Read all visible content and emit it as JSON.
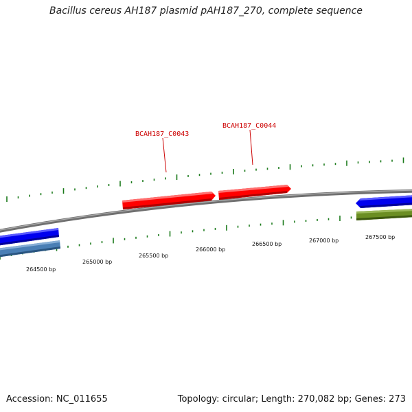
{
  "title": "Bacillus cereus AH187 plasmid pAH187_270, complete sequence",
  "footer": {
    "accession": "Accession: NC_011655",
    "summary": "Topology: circular; Length: 270,082 bp; Genes: 273"
  },
  "position_labels": [
    "264500 bp",
    "265000 bp",
    "265500 bp",
    "266000 bp",
    "266500 bp",
    "267000 bp",
    "267500 bp"
  ],
  "genes": [
    {
      "name": "BCAH187_C0043",
      "color": "#ff0000",
      "strand": "forward",
      "labeled": true
    },
    {
      "name": "BCAH187_C0044",
      "color": "#ff0000",
      "strand": "forward",
      "labeled": true
    },
    {
      "name": "",
      "color": "#0000ee",
      "strand": "forward",
      "labeled": false
    },
    {
      "name": "",
      "color": "#4a7fb5",
      "strand": "forward",
      "labeled": false
    },
    {
      "name": "",
      "color": "#0000ee",
      "strand": "reverse",
      "labeled": false
    },
    {
      "name": "",
      "color": "#6b8e23",
      "strand": "forward",
      "labeled": false
    }
  ],
  "colors": {
    "backbone": "#808080",
    "tick": "#1a7a1a",
    "gene_label": "#cc0000"
  }
}
